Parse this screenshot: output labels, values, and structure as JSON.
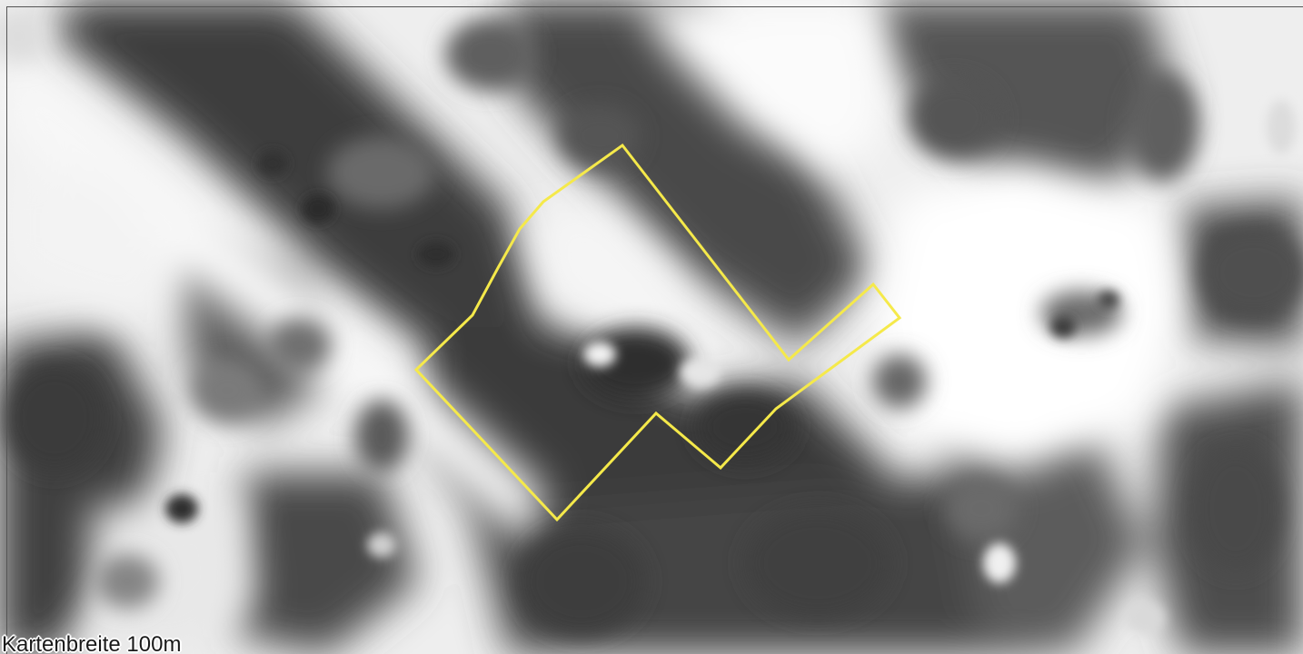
{
  "map": {
    "scale_label": "Kartenbreite 100m",
    "imagery": "grayscale-aerial-photo",
    "outline_color": "#f5e94a"
  }
}
